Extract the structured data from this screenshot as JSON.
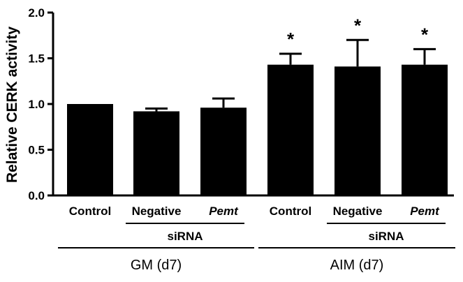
{
  "chart_data": {
    "type": "bar",
    "title": "",
    "xlabel": "",
    "ylabel": "Relative CERK activity",
    "ylim": [
      0,
      2.0
    ],
    "yticks": [
      "0.0",
      "0.5",
      "1.0",
      "1.5",
      "2.0"
    ],
    "categories": [
      {
        "label": "Control",
        "italic": false
      },
      {
        "label": "Negative",
        "italic": false
      },
      {
        "label": "Pemt",
        "italic": true
      },
      {
        "label": "Control",
        "italic": false
      },
      {
        "label": "Negative",
        "italic": false
      },
      {
        "label": "Pemt",
        "italic": true
      }
    ],
    "values": [
      1.0,
      0.92,
      0.96,
      1.43,
      1.41,
      1.43
    ],
    "errors": [
      0.0,
      0.03,
      0.1,
      0.12,
      0.29,
      0.17
    ],
    "annotations": [
      "",
      "",
      "",
      "*",
      "*",
      "*"
    ],
    "bar_color": "#000000",
    "groups": [
      {
        "label": "GM (d7)",
        "sublabel": "siRNA"
      },
      {
        "label": "AIM (d7)",
        "sublabel": "siRNA"
      }
    ],
    "grid": false,
    "legend": "none"
  }
}
